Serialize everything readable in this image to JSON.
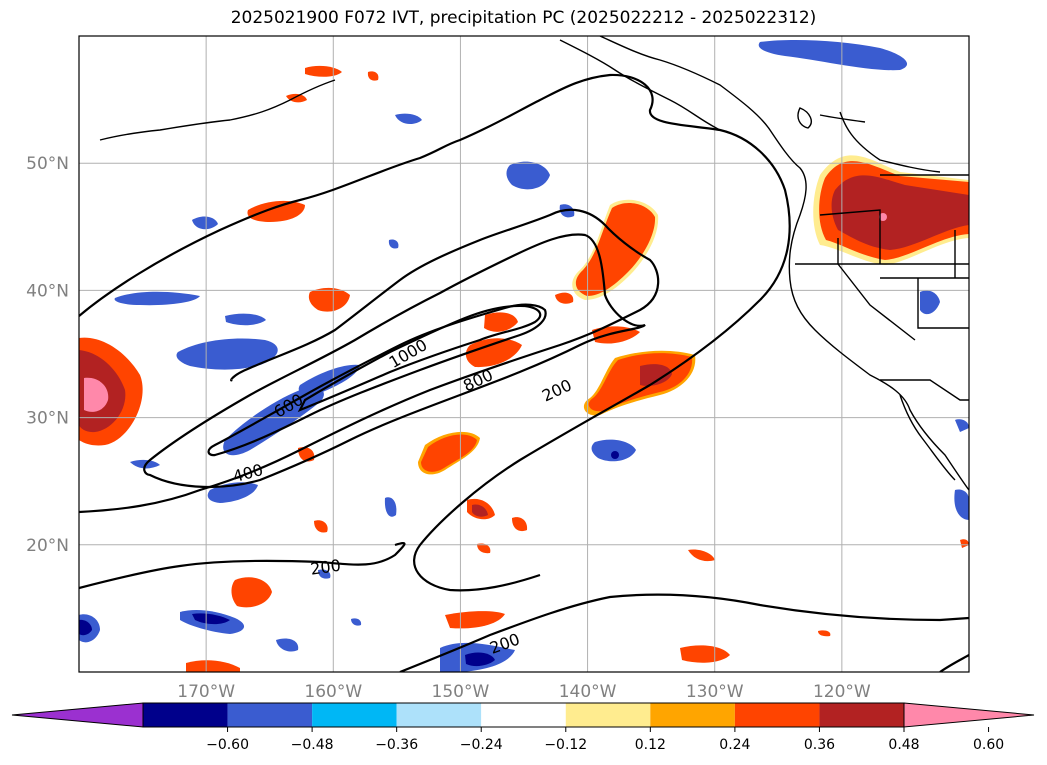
{
  "title": "2025021900 F072 IVT, precipitation PC (2025022212 - 2025022312)",
  "map": {
    "lon_range": [
      -180,
      -110
    ],
    "lat_range": [
      10,
      60
    ],
    "lat_labels": [
      {
        "lat": 50,
        "text": "50°N"
      },
      {
        "lat": 40,
        "text": "40°N"
      },
      {
        "lat": 30,
        "text": "30°N"
      },
      {
        "lat": 20,
        "text": "20°N"
      }
    ],
    "lon_labels": [
      {
        "lon": -170,
        "text": "170°W"
      },
      {
        "lon": -160,
        "text": "160°W"
      },
      {
        "lon": -150,
        "text": "150°W"
      },
      {
        "lon": -140,
        "text": "140°W"
      },
      {
        "lon": -130,
        "text": "130°W"
      },
      {
        "lon": -120,
        "text": "120°W"
      }
    ],
    "ivt_labels": [
      {
        "text": "1000",
        "lon": -154.1,
        "lat": 35.0,
        "rot": -30
      },
      {
        "text": "800",
        "lon": -148.6,
        "lat": 32.9,
        "rot": -25
      },
      {
        "text": "600",
        "lon": -163.5,
        "lat": 30.9,
        "rot": -30
      },
      {
        "text": "400",
        "lon": -166.7,
        "lat": 25.6,
        "rot": -15
      },
      {
        "text": "200",
        "lon": -142.4,
        "lat": 32.1,
        "rot": -25
      },
      {
        "text": "200",
        "lon": -160.6,
        "lat": 18.2,
        "rot": -8
      },
      {
        "text": "200",
        "lon": -146.5,
        "lat": 12.2,
        "rot": -20
      }
    ]
  },
  "colorbar": {
    "colors": [
      "#9b30d0",
      "#00008b",
      "#3a5cd0",
      "#00b7f5",
      "#ade1fa",
      "#ffffff",
      "#ffec8f",
      "#ffa500",
      "#ff4400",
      "#b22222",
      "#ff88aa"
    ],
    "ticks": [
      "−0.60",
      "−0.48",
      "−0.36",
      "−0.24",
      "−0.12",
      "0.12",
      "0.24",
      "0.36",
      "0.48",
      "0.60"
    ]
  }
}
